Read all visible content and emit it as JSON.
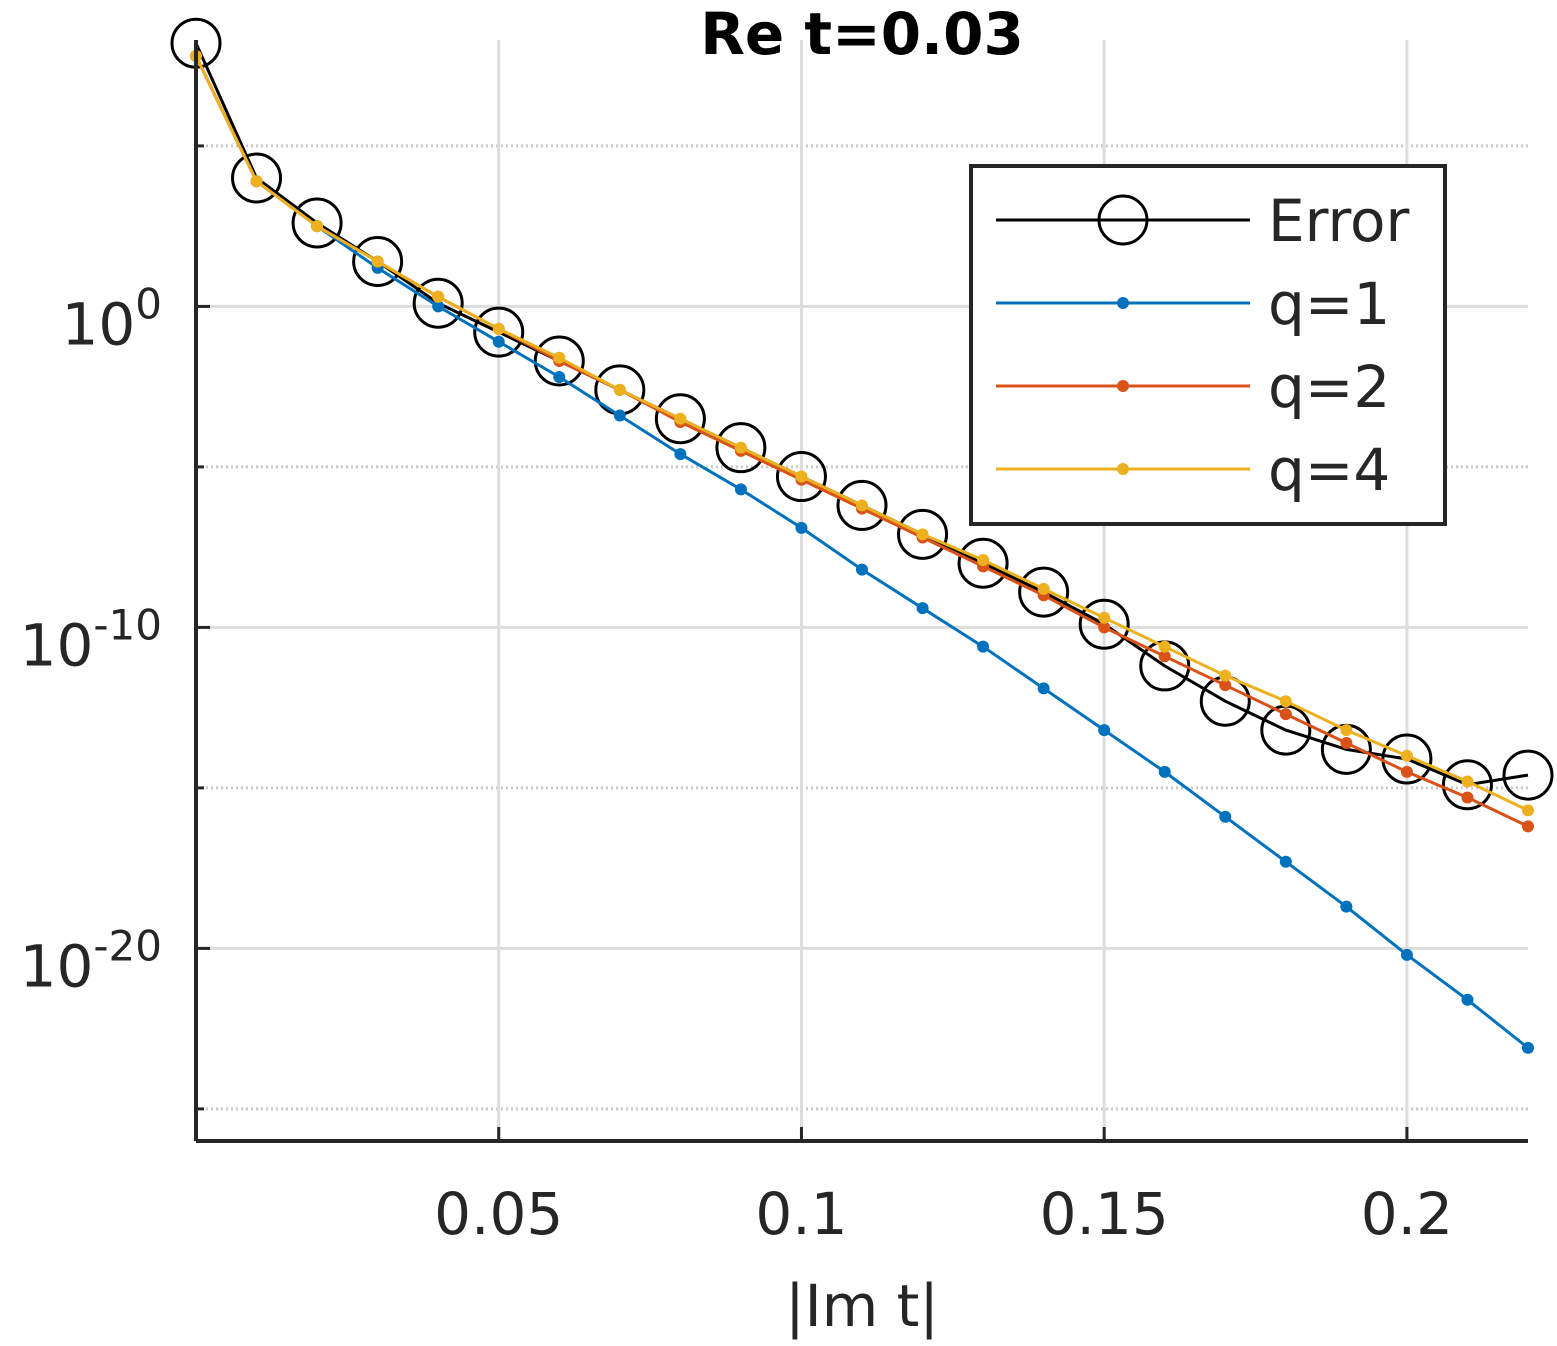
{
  "chart_data": {
    "type": "line",
    "title": "Re t=0.03",
    "xlabel": "|Im t|",
    "ylabel": "",
    "yscale": "log",
    "xlim": [
      0,
      0.22
    ],
    "ylim_log10": [
      -26,
      8.3
    ],
    "grid": true,
    "legend_position": "top-right",
    "x_ticks": [
      {
        "value": 0.05,
        "label": "0.05"
      },
      {
        "value": 0.1,
        "label": "0.1"
      },
      {
        "value": 0.15,
        "label": "0.15"
      },
      {
        "value": 0.2,
        "label": "0.2"
      }
    ],
    "y_ticks": [
      {
        "value_log10": 0,
        "base": "10",
        "exp": "0"
      },
      {
        "value_log10": -10,
        "base": "10",
        "exp": "-10"
      },
      {
        "value_log10": -20,
        "base": "10",
        "exp": "-20"
      }
    ],
    "x": [
      0.0,
      0.01,
      0.02,
      0.03,
      0.04,
      0.05,
      0.06,
      0.07,
      0.08,
      0.09,
      0.1,
      0.11,
      0.12,
      0.13,
      0.14,
      0.15,
      0.16,
      0.17,
      0.18,
      0.19,
      0.2,
      0.21,
      0.22
    ],
    "series": [
      {
        "name": "Error",
        "color": "#000000",
        "marker": "circle",
        "values_log10": [
          8.2,
          4.0,
          2.6,
          1.4,
          0.1,
          -0.8,
          -1.7,
          -2.6,
          -3.5,
          -4.4,
          -5.3,
          -6.2,
          -7.1,
          -8.0,
          -8.9,
          -9.9,
          -11.2,
          -12.3,
          -13.2,
          -13.8,
          -14.1,
          -14.9,
          -14.6
        ]
      },
      {
        "name": "q=1",
        "color": "#0072BD",
        "marker": "dot",
        "values_log10": [
          7.8,
          3.9,
          2.5,
          1.2,
          0.0,
          -1.1,
          -2.2,
          -3.4,
          -4.6,
          -5.7,
          -6.9,
          -8.2,
          -9.4,
          -10.6,
          -11.9,
          -13.2,
          -14.5,
          -15.9,
          -17.3,
          -18.7,
          -20.2,
          -21.6,
          -23.1
        ]
      },
      {
        "name": "q=2",
        "color": "#D95319",
        "marker": "dot",
        "values_log10": [
          7.8,
          3.9,
          2.5,
          1.4,
          0.3,
          -0.7,
          -1.7,
          -2.6,
          -3.6,
          -4.5,
          -5.4,
          -6.3,
          -7.2,
          -8.1,
          -9.0,
          -10.0,
          -10.9,
          -11.8,
          -12.7,
          -13.6,
          -14.5,
          -15.3,
          -16.2
        ]
      },
      {
        "name": "q=4",
        "color": "#EDB120",
        "marker": "dot",
        "values_log10": [
          7.8,
          3.9,
          2.5,
          1.4,
          0.3,
          -0.7,
          -1.6,
          -2.6,
          -3.5,
          -4.4,
          -5.3,
          -6.2,
          -7.1,
          -7.9,
          -8.8,
          -9.7,
          -10.6,
          -11.5,
          -12.3,
          -13.2,
          -14.0,
          -14.8,
          -15.7
        ]
      }
    ]
  }
}
